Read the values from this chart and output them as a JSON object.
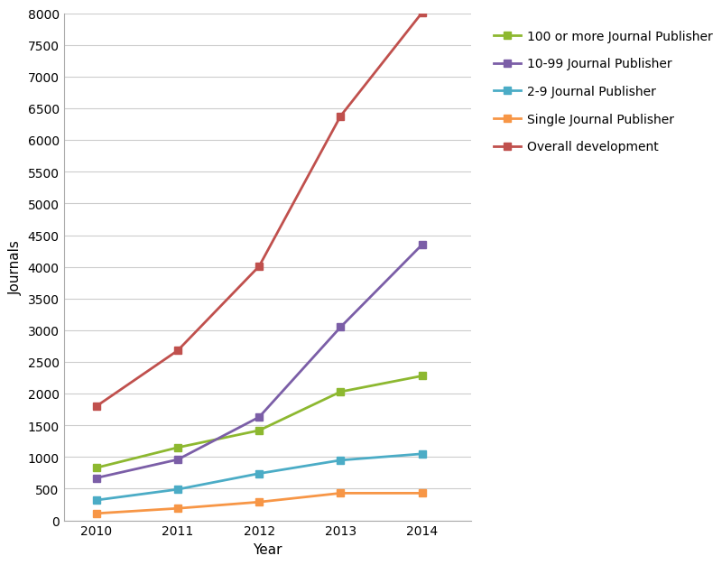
{
  "years": [
    2010,
    2011,
    2012,
    2013,
    2014
  ],
  "series": {
    "100 or more Journal Publisher": {
      "values": [
        830,
        1150,
        1420,
        2030,
        2280
      ],
      "color": "#8DB830",
      "marker": "s",
      "zorder": 3
    },
    "10-99 Journal Publisher": {
      "values": [
        670,
        960,
        1630,
        3050,
        4350
      ],
      "color": "#7B5EA7",
      "marker": "s",
      "zorder": 3
    },
    "2-9 Journal Publisher": {
      "values": [
        320,
        490,
        740,
        950,
        1050
      ],
      "color": "#4BACC6",
      "marker": "s",
      "zorder": 3
    },
    "Single Journal Publisher": {
      "values": [
        110,
        190,
        290,
        430,
        430
      ],
      "color": "#F79646",
      "marker": "s",
      "zorder": 3
    },
    "Overall development": {
      "values": [
        1800,
        2680,
        4010,
        6380,
        8010
      ],
      "color": "#C0504D",
      "marker": "s",
      "zorder": 4
    }
  },
  "xlabel": "Year",
  "ylabel": "Journals",
  "ylim": [
    0,
    8000
  ],
  "yticks": [
    0,
    500,
    1000,
    1500,
    2000,
    2500,
    3000,
    3500,
    4000,
    4500,
    5000,
    5500,
    6000,
    6500,
    7000,
    7500,
    8000
  ],
  "background_color": "#FFFFFF",
  "grid_color": "#CCCCCC",
  "legend_order": [
    "100 or more Journal Publisher",
    "10-99 Journal Publisher",
    "2-9 Journal Publisher",
    "Single Journal Publisher",
    "Overall development"
  ]
}
